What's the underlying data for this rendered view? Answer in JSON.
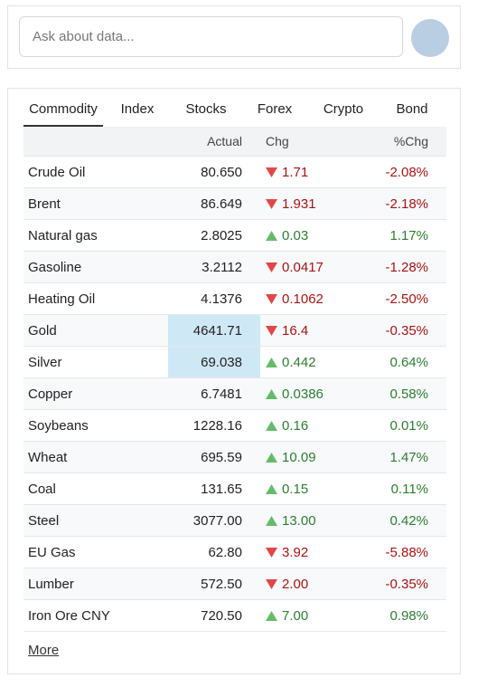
{
  "search": {
    "placeholder": "Ask about data..."
  },
  "tabs": [
    "Commodity",
    "Index",
    "Stocks",
    "Forex",
    "Crypto",
    "Bond"
  ],
  "table": {
    "header": [
      "Actual",
      "Chg",
      "%Chg"
    ],
    "rows": [
      [
        "Crude Oil",
        "80.650",
        "1.71",
        "-2.08%"
      ],
      [
        "Brent",
        "86.649",
        "1.931",
        "-2.18%"
      ],
      [
        "Natural gas",
        "2.8025",
        "0.03",
        "1.17%"
      ],
      [
        "Gasoline",
        "3.2112",
        "0.0417",
        "-1.28%"
      ],
      [
        "Heating Oil",
        "4.1376",
        "0.1062",
        "-2.50%"
      ],
      [
        "Gold",
        "4641.71",
        "16.4",
        "-0.35%"
      ],
      [
        "Silver",
        "69.038",
        "0.442",
        "0.64%"
      ],
      [
        "Copper",
        "6.7481",
        "0.0386",
        "0.58%"
      ],
      [
        "Soybeans",
        "1228.16",
        "0.16",
        "0.01%"
      ],
      [
        "Wheat",
        "695.59",
        "10.09",
        "1.47%"
      ],
      [
        "Coal",
        "131.65",
        "0.15",
        "0.11%"
      ],
      [
        "Steel",
        "3077.00",
        "13.00",
        "0.42%"
      ],
      [
        "EU Gas",
        "62.80",
        "3.92",
        "-5.88%"
      ],
      [
        "Lumber",
        "572.50",
        "2.00",
        "-0.35%"
      ],
      [
        "Iron Ore CNY",
        "720.50",
        "7.00",
        "0.98%"
      ]
    ]
  },
  "more": "More"
}
